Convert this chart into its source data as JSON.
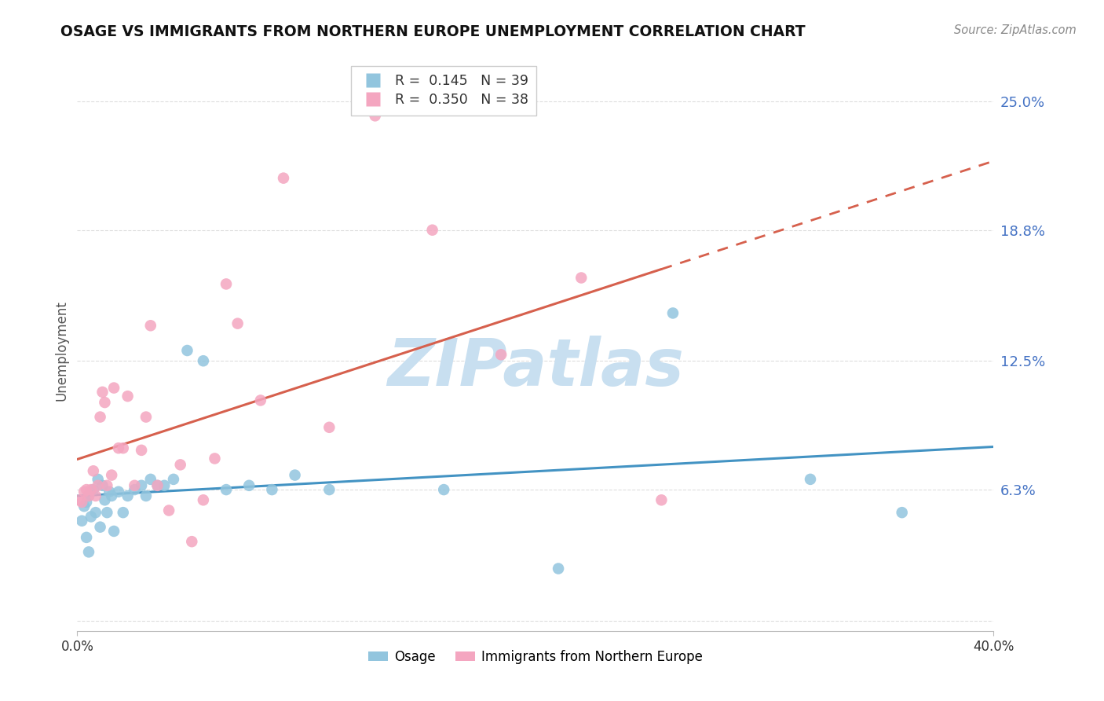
{
  "title": "OSAGE VS IMMIGRANTS FROM NORTHERN EUROPE UNEMPLOYMENT CORRELATION CHART",
  "source": "Source: ZipAtlas.com",
  "ylabel": "Unemployment",
  "ytick_vals": [
    0.0,
    0.063,
    0.125,
    0.188,
    0.25
  ],
  "ytick_labels": [
    "",
    "6.3%",
    "12.5%",
    "18.8%",
    "25.0%"
  ],
  "xtick_vals": [
    0.0,
    0.4
  ],
  "xtick_labels": [
    "0.0%",
    "40.0%"
  ],
  "xmin": 0.0,
  "xmax": 0.4,
  "ymin": -0.005,
  "ymax": 0.265,
  "legend_line1": "R =  0.145   N = 39",
  "legend_line2": "R =  0.350   N = 38",
  "legend_label1": "Osage",
  "legend_label2": "Immigrants from Northern Europe",
  "blue_scatter_color": "#92c5de",
  "pink_scatter_color": "#f4a6c0",
  "blue_line_color": "#4393c3",
  "pink_line_color": "#d6604d",
  "ytick_color": "#4472c4",
  "watermark_text": "ZIPatlas",
  "watermark_color": "#c8dff0",
  "grid_color": "#dddddd",
  "osage_x": [
    0.002,
    0.003,
    0.004,
    0.004,
    0.005,
    0.005,
    0.006,
    0.007,
    0.008,
    0.009,
    0.01,
    0.011,
    0.012,
    0.013,
    0.014,
    0.015,
    0.016,
    0.018,
    0.02,
    0.022,
    0.025,
    0.028,
    0.03,
    0.032,
    0.035,
    0.038,
    0.042,
    0.048,
    0.055,
    0.065,
    0.075,
    0.085,
    0.095,
    0.11,
    0.16,
    0.21,
    0.26,
    0.32,
    0.36
  ],
  "osage_y": [
    0.048,
    0.055,
    0.04,
    0.057,
    0.033,
    0.06,
    0.05,
    0.063,
    0.052,
    0.068,
    0.045,
    0.065,
    0.058,
    0.052,
    0.062,
    0.06,
    0.043,
    0.062,
    0.052,
    0.06,
    0.063,
    0.065,
    0.06,
    0.068,
    0.065,
    0.065,
    0.068,
    0.13,
    0.125,
    0.063,
    0.065,
    0.063,
    0.07,
    0.063,
    0.063,
    0.025,
    0.148,
    0.068,
    0.052
  ],
  "imm_x": [
    0.001,
    0.002,
    0.003,
    0.004,
    0.005,
    0.006,
    0.007,
    0.008,
    0.009,
    0.01,
    0.011,
    0.012,
    0.013,
    0.015,
    0.016,
    0.018,
    0.02,
    0.022,
    0.025,
    0.028,
    0.03,
    0.032,
    0.035,
    0.04,
    0.045,
    0.05,
    0.055,
    0.06,
    0.065,
    0.07,
    0.08,
    0.09,
    0.11,
    0.13,
    0.155,
    0.185,
    0.22,
    0.255
  ],
  "imm_y": [
    0.058,
    0.057,
    0.062,
    0.063,
    0.06,
    0.063,
    0.072,
    0.06,
    0.065,
    0.098,
    0.11,
    0.105,
    0.065,
    0.07,
    0.112,
    0.083,
    0.083,
    0.108,
    0.065,
    0.082,
    0.098,
    0.142,
    0.065,
    0.053,
    0.075,
    0.038,
    0.058,
    0.078,
    0.162,
    0.143,
    0.106,
    0.213,
    0.093,
    0.243,
    0.188,
    0.128,
    0.165,
    0.058
  ]
}
